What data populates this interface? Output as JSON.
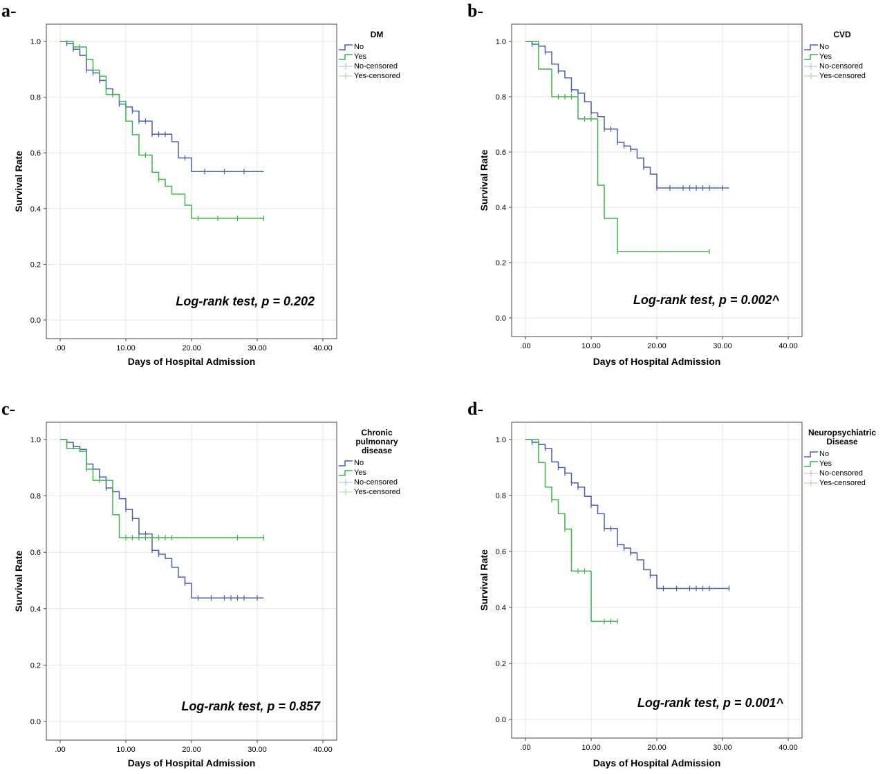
{
  "colors": {
    "no": "#4a5fae",
    "yes": "#3cb44b",
    "no_censored": "#a8b4e0",
    "yes_censored": "#9ad9a0"
  },
  "chart_data": [
    {
      "panel": "a-",
      "type": "line",
      "legend_title": [
        "DM"
      ],
      "legend_entries": [
        "No",
        "Yes",
        "No-censored",
        "Yes-censored"
      ],
      "xlabel": "Days of Hospital Admission",
      "ylabel": "Survival Rate",
      "xlim": [
        0,
        40
      ],
      "ylim": [
        0,
        1
      ],
      "x_ticks": [
        ".00",
        "10.00",
        "20.00",
        "30.00",
        "40.00"
      ],
      "y_ticks": [
        "0.0",
        "0.2",
        "0.4",
        "0.6",
        "0.8",
        "1.0"
      ],
      "annotation": "Log-rank test, p = 0.202",
      "series": [
        {
          "name": "No",
          "color_key": "no",
          "steps": [
            [
              0,
              1.0
            ],
            [
              1,
              0.993
            ],
            [
              2,
              0.972
            ],
            [
              3,
              0.95
            ],
            [
              4,
              0.897
            ],
            [
              5,
              0.887
            ],
            [
              6,
              0.86
            ],
            [
              7,
              0.83
            ],
            [
              8,
              0.81
            ],
            [
              9,
              0.775
            ],
            [
              10,
              0.765
            ],
            [
              11,
              0.75
            ],
            [
              12,
              0.714
            ],
            [
              14,
              0.667
            ],
            [
              17,
              0.64
            ],
            [
              18,
              0.582
            ],
            [
              20,
              0.533
            ],
            [
              31,
              0.533
            ]
          ],
          "censored": [
            1,
            2,
            4,
            5,
            6,
            7,
            8,
            9,
            10,
            11,
            12,
            13,
            14,
            15,
            16,
            19,
            22,
            25,
            28
          ]
        },
        {
          "name": "Yes",
          "color_key": "yes",
          "steps": [
            [
              0,
              1.0
            ],
            [
              2,
              0.98
            ],
            [
              4,
              0.935
            ],
            [
              5,
              0.897
            ],
            [
              6,
              0.875
            ],
            [
              7,
              0.81
            ],
            [
              9,
              0.785
            ],
            [
              10,
              0.714
            ],
            [
              11,
              0.665
            ],
            [
              12,
              0.592
            ],
            [
              14,
              0.53
            ],
            [
              15,
              0.505
            ],
            [
              16,
              0.48
            ],
            [
              17,
              0.452
            ],
            [
              19,
              0.412
            ],
            [
              20,
              0.365
            ],
            [
              31,
              0.365
            ]
          ],
          "censored": [
            3,
            5,
            8,
            13,
            15,
            21,
            24,
            27,
            31
          ]
        }
      ]
    },
    {
      "panel": "b-",
      "type": "line",
      "legend_title": [
        "CVD"
      ],
      "legend_entries": [
        "No",
        "Yes",
        "No-censored",
        "Yes-censored"
      ],
      "xlabel": "Days of Hospital Admission",
      "ylabel": "Survival Rate",
      "xlim": [
        0,
        40
      ],
      "ylim": [
        0,
        1
      ],
      "x_ticks": [
        ".00",
        "10.00",
        "20.00",
        "30.00",
        "40.00"
      ],
      "y_ticks": [
        "0.0",
        "0.2",
        "0.4",
        "0.6",
        "0.8",
        "1.0"
      ],
      "annotation": "Log-rank test, p = 0.002^",
      "series": [
        {
          "name": "No",
          "color_key": "no",
          "steps": [
            [
              0,
              1.0
            ],
            [
              1,
              0.99
            ],
            [
              2,
              0.983
            ],
            [
              3,
              0.962
            ],
            [
              4,
              0.918
            ],
            [
              5,
              0.893
            ],
            [
              6,
              0.868
            ],
            [
              7,
              0.825
            ],
            [
              8,
              0.813
            ],
            [
              9,
              0.782
            ],
            [
              10,
              0.742
            ],
            [
              11,
              0.728
            ],
            [
              12,
              0.683
            ],
            [
              14,
              0.635
            ],
            [
              15,
              0.622
            ],
            [
              16,
              0.61
            ],
            [
              17,
              0.578
            ],
            [
              18,
              0.545
            ],
            [
              19,
              0.52
            ],
            [
              20,
              0.47
            ],
            [
              31,
              0.47
            ]
          ],
          "censored": [
            1,
            3,
            5,
            7,
            8,
            10,
            12,
            13,
            14,
            15,
            16,
            18,
            20,
            22,
            24,
            25,
            26,
            27,
            28,
            30
          ]
        },
        {
          "name": "Yes",
          "color_key": "yes",
          "steps": [
            [
              0,
              1.0
            ],
            [
              2,
              0.9
            ],
            [
              4,
              0.8
            ],
            [
              8,
              0.72
            ],
            [
              11,
              0.48
            ],
            [
              12,
              0.36
            ],
            [
              14,
              0.24
            ],
            [
              28,
              0.24
            ]
          ],
          "censored": [
            5,
            6,
            7,
            9,
            10,
            14,
            28
          ]
        }
      ]
    },
    {
      "panel": "c-",
      "type": "line",
      "legend_title": [
        "Chronic",
        "pulmonary",
        "disease"
      ],
      "legend_entries": [
        "No",
        "Yes",
        "No-censored",
        "Yes-censored"
      ],
      "xlabel": "Days of Hospital Admission",
      "ylabel": "Survival Rate",
      "xlim": [
        0,
        40
      ],
      "ylim": [
        0,
        1
      ],
      "x_ticks": [
        ".00",
        "10.00",
        "20.00",
        "30.00",
        "40.00"
      ],
      "y_ticks": [
        "0.0",
        "0.2",
        "0.4",
        "0.6",
        "0.8",
        "1.0"
      ],
      "annotation": "Log-rank test, p = 0.857",
      "series": [
        {
          "name": "No",
          "color_key": "no",
          "steps": [
            [
              0,
              1.0
            ],
            [
              1,
              0.99
            ],
            [
              2,
              0.975
            ],
            [
              3,
              0.965
            ],
            [
              4,
              0.913
            ],
            [
              5,
              0.895
            ],
            [
              6,
              0.867
            ],
            [
              7,
              0.828
            ],
            [
              8,
              0.815
            ],
            [
              9,
              0.79
            ],
            [
              10,
              0.752
            ],
            [
              11,
              0.72
            ],
            [
              12,
              0.665
            ],
            [
              14,
              0.607
            ],
            [
              15,
              0.593
            ],
            [
              16,
              0.578
            ],
            [
              17,
              0.547
            ],
            [
              18,
              0.512
            ],
            [
              19,
              0.49
            ],
            [
              20,
              0.438
            ],
            [
              31,
              0.438
            ]
          ],
          "censored": [
            1,
            2,
            3,
            4,
            6,
            7,
            8,
            10,
            11,
            12,
            13,
            14,
            15,
            19,
            21,
            23,
            25,
            26,
            27,
            28,
            30
          ]
        },
        {
          "name": "Yes",
          "color_key": "yes",
          "steps": [
            [
              0,
              1.0
            ],
            [
              1,
              0.968
            ],
            [
              3,
              0.958
            ],
            [
              4,
              0.895
            ],
            [
              5,
              0.855
            ],
            [
              8,
              0.733
            ],
            [
              9,
              0.652
            ],
            [
              31,
              0.652
            ]
          ],
          "censored": [
            4,
            6,
            10,
            11,
            12,
            13,
            14,
            15,
            16,
            17,
            27,
            31
          ]
        }
      ]
    },
    {
      "panel": "d-",
      "type": "line",
      "legend_title": [
        "Neuropsychiatric",
        "Disease"
      ],
      "legend_entries": [
        "No",
        "Yes",
        "No-censored",
        "Yes-censored"
      ],
      "xlabel": "Days of Hospital Admission",
      "ylabel": "Survival Rate",
      "xlim": [
        0,
        40
      ],
      "ylim": [
        0,
        1
      ],
      "x_ticks": [
        ".00",
        "10.00",
        "20.00",
        "30.00",
        "40.00"
      ],
      "y_ticks": [
        "0.0",
        "0.2",
        "0.4",
        "0.6",
        "0.8",
        "1.0"
      ],
      "annotation": "Log-rank test, p = 0.001^",
      "series": [
        {
          "name": "No",
          "color_key": "no",
          "steps": [
            [
              0,
              1.0
            ],
            [
              1,
              0.99
            ],
            [
              2,
              0.982
            ],
            [
              3,
              0.968
            ],
            [
              4,
              0.92
            ],
            [
              5,
              0.9
            ],
            [
              6,
              0.88
            ],
            [
              7,
              0.845
            ],
            [
              8,
              0.83
            ],
            [
              9,
              0.797
            ],
            [
              10,
              0.765
            ],
            [
              11,
              0.735
            ],
            [
              12,
              0.682
            ],
            [
              14,
              0.625
            ],
            [
              15,
              0.612
            ],
            [
              16,
              0.595
            ],
            [
              17,
              0.57
            ],
            [
              18,
              0.535
            ],
            [
              19,
              0.515
            ],
            [
              20,
              0.468
            ],
            [
              31,
              0.468
            ]
          ],
          "censored": [
            1,
            2,
            3,
            5,
            6,
            7,
            8,
            10,
            12,
            13,
            14,
            15,
            16,
            19,
            21,
            23,
            25,
            26,
            27,
            28,
            31
          ]
        },
        {
          "name": "Yes",
          "color_key": "yes",
          "steps": [
            [
              0,
              1.0
            ],
            [
              2,
              0.918
            ],
            [
              3,
              0.83
            ],
            [
              4,
              0.785
            ],
            [
              5,
              0.735
            ],
            [
              6,
              0.68
            ],
            [
              7,
              0.53
            ],
            [
              10,
              0.35
            ],
            [
              14,
              0.35
            ]
          ],
          "censored": [
            4,
            6,
            8,
            9,
            12,
            13,
            14
          ]
        }
      ]
    }
  ]
}
